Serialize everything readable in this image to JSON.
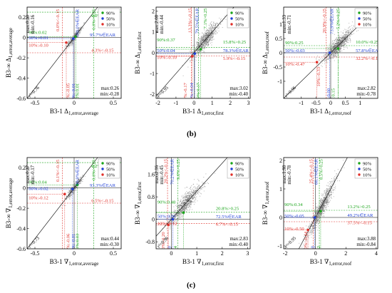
{
  "figure": {
    "captions": [
      "(b)",
      "(c)"
    ]
  },
  "colors": {
    "p90": "#1aa51a",
    "p50": "#1f3fd6",
    "p10": "#e0302a",
    "cloud": "#6b6b6b"
  },
  "legend": {
    "labels": [
      "90%",
      "50%",
      "10%"
    ]
  },
  "chart_data": [
    {
      "type": "scatter",
      "row": 0,
      "col": 0,
      "xlabel": "B3-1 Δ1,error,average",
      "ylabel": "B3-∞ Δ1,error,average",
      "xlim": [
        -0.6,
        0.6
      ],
      "ylim": [
        -0.6,
        0.3
      ],
      "xticks": [
        -0.5,
        0,
        0.5
      ],
      "yticks": [
        -0.6,
        -0.4,
        -0.2,
        0,
        0.2
      ],
      "xtick_labels": [
        "-0.5",
        "0",
        "0.5"
      ],
      "ytick_labels": [
        "-0.6",
        "-0.4",
        "-0.2",
        "0",
        "0.2"
      ],
      "stats_tl": [
        "max:0.20",
        "min:-0.16"
      ],
      "stats_br": [
        "max:0.26",
        "min:-0.28"
      ],
      "r_label": "r²=0.76",
      "percentiles": {
        "p90": [
          0.02,
          0.01
        ],
        "p50": [
          -0.01,
          -0.01
        ],
        "p10": [
          -0.1,
          -0.05
        ]
      },
      "cloud": {
        "center": [
          0,
          0
        ],
        "spread": [
          0.1,
          0.055
        ],
        "n": 360
      },
      "annotations": [
        {
          "text": "0.0%>0.25",
          "color": "p90",
          "kind": "v",
          "x": 0.27,
          "y": 0.28
        },
        {
          "text": "100.0%∈EAR",
          "color": "p50",
          "kind": "v",
          "x": 0.06,
          "y": 0.28
        },
        {
          "text": "0.0%<-0.15",
          "color": "p10",
          "kind": "v",
          "x": -0.19,
          "y": 0.28
        },
        {
          "text": "0.0%>0.25",
          "color": "p90",
          "kind": "h",
          "x": 0.22,
          "y": 0.2
        },
        {
          "text": "95.7%∈EAR",
          "color": "p50",
          "kind": "h",
          "x": 0.2,
          "y": 0.01
        },
        {
          "text": "4.3%<-0.15",
          "color": "p10",
          "kind": "h",
          "x": 0.22,
          "y": -0.14
        },
        {
          "text": "90%:0.02",
          "color": "p90",
          "kind": "h",
          "x": -0.58,
          "y": 0.035
        },
        {
          "text": "50%:-0.01",
          "color": "p50",
          "kind": "h",
          "x": -0.58,
          "y": -0.015
        },
        {
          "text": "10%:-0.10",
          "color": "p10",
          "kind": "h",
          "x": -0.58,
          "y": -0.09
        },
        {
          "text": "10%:-0.05",
          "color": "p10",
          "kind": "v",
          "x": -0.06,
          "y": -0.45
        },
        {
          "text": "50%:-0.01",
          "color": "p50",
          "kind": "v",
          "x": 0.01,
          "y": -0.45
        },
        {
          "text": "90%:0.01",
          "color": "p90",
          "kind": "v",
          "x": 0.06,
          "y": -0.45
        }
      ]
    },
    {
      "type": "scatter",
      "row": 0,
      "col": 1,
      "xlabel": "B3-1 Δ1,error,first",
      "ylabel": "B3-∞ Δ1,error,first",
      "xlim": [
        -2.1,
        3.1
      ],
      "ylim": [
        -2.2,
        2.2
      ],
      "xticks": [
        -2,
        -1,
        0,
        1,
        2,
        3
      ],
      "yticks": [
        -2,
        -1,
        0,
        1,
        2
      ],
      "xtick_labels": [
        "-2",
        "-1",
        "0",
        "1",
        "2",
        "3"
      ],
      "ytick_labels": [
        "-2",
        "-1",
        "0",
        "1",
        "2"
      ],
      "stats_tl": [
        "max:2.08",
        "min:-0.44"
      ],
      "stats_br": [
        "max:3.02",
        "min:-0.40"
      ],
      "r_label": "r²=0.95",
      "percentiles": {
        "p90": [
          0.37,
          0.17
        ],
        "p50": [
          0.04,
          -0.04
        ],
        "p10": [
          -0.1,
          -0.17
        ]
      },
      "cloud": {
        "center": [
          0.6,
          0.6
        ],
        "spread": [
          0.7,
          0.55
        ],
        "n": 900
      },
      "annotations": [
        {
          "text": "13.3%<-0.15",
          "color": "p10",
          "kind": "v",
          "x": -0.15,
          "y": 2.15
        },
        {
          "text": "79.5%∈EAR",
          "color": "p50",
          "kind": "v",
          "x": 0.25,
          "y": 2.15
        },
        {
          "text": "7.1%>0.25",
          "color": "p90",
          "kind": "v",
          "x": 0.7,
          "y": 2.15
        },
        {
          "text": "15.8%>0.25",
          "color": "p90",
          "kind": "h",
          "x": 1.6,
          "y": 0.45
        },
        {
          "text": "78.3%∈EAR",
          "color": "p50",
          "kind": "h",
          "x": 1.6,
          "y": 0.03
        },
        {
          "text": "5.9%<-0.15",
          "color": "p10",
          "kind": "h",
          "x": 1.6,
          "y": -0.35
        },
        {
          "text": "90%:0.37",
          "color": "p90",
          "kind": "h",
          "x": -2.05,
          "y": 0.55
        },
        {
          "text": "50%:0.04",
          "color": "p50",
          "kind": "h",
          "x": -2.05,
          "y": 0.03
        },
        {
          "text": "10%:-0.10",
          "color": "p10",
          "kind": "h",
          "x": -2.05,
          "y": -0.3
        },
        {
          "text": "10%:-0.17",
          "color": "p10",
          "kind": "v",
          "x": -0.4,
          "y": -1.45
        },
        {
          "text": "50%:-0.04",
          "color": "p50",
          "kind": "v",
          "x": -0.05,
          "y": -1.45
        },
        {
          "text": "90%:0.17",
          "color": "p90",
          "kind": "v",
          "x": 0.3,
          "y": -1.45
        }
      ]
    },
    {
      "type": "scatter",
      "row": 0,
      "col": 2,
      "xlabel": "B3-1 Δ1,error,roof",
      "ylabel": "B3-∞ Δ1,error,roof",
      "xlim": [
        -1.6,
        1.6
      ],
      "ylim": [
        -1.6,
        1.6
      ],
      "xticks": [
        -1,
        -0.5,
        0,
        0.5,
        1
      ],
      "yticks": [
        -1,
        -0.5,
        0,
        0.5,
        1
      ],
      "xtick_labels": [
        "-1",
        "-0.5",
        "0",
        "0.5",
        "1"
      ],
      "ytick_labels": [
        "-1",
        "-0.5",
        "0",
        "0.5",
        "1"
      ],
      "stats_tl": [
        "max:1.33",
        "min:-0.71"
      ],
      "stats_br": [
        "max:2.82",
        "min:-0.78"
      ],
      "r_label": "r²=0.96",
      "percentiles": {
        "p90": [
          0.25,
          0.15
        ],
        "p50": [
          -0.03,
          0.0
        ],
        "p10": [
          -0.47,
          -0.33
        ]
      },
      "cloud": {
        "center": [
          0.25,
          0.25
        ],
        "spread": [
          0.45,
          0.4
        ],
        "n": 1000
      },
      "annotations": [
        {
          "text": "20.9%<-0.15",
          "color": "p10",
          "kind": "v",
          "x": -0.17,
          "y": 1.55
        },
        {
          "text": "73.9%∈EAR",
          "color": "p50",
          "kind": "v",
          "x": 0.08,
          "y": 1.55
        },
        {
          "text": "5.2%>0.25",
          "color": "p90",
          "kind": "v",
          "x": 0.3,
          "y": 1.55
        },
        {
          "text": "10.0%>0.25",
          "color": "p90",
          "kind": "h",
          "x": 0.85,
          "y": 0.32
        },
        {
          "text": "57.8%∈EAR",
          "color": "p50",
          "kind": "h",
          "x": 0.85,
          "y": 0.03
        },
        {
          "text": "32.2%<-0.15",
          "color": "p10",
          "kind": "h",
          "x": 0.85,
          "y": -0.25
        },
        {
          "text": "90%:0.25",
          "color": "p90",
          "kind": "h",
          "x": -1.55,
          "y": 0.3
        },
        {
          "text": "50%:-0.03",
          "color": "p50",
          "kind": "h",
          "x": -1.55,
          "y": 0.02
        },
        {
          "text": "10%:-0.47",
          "color": "p10",
          "kind": "h",
          "x": -1.55,
          "y": -0.45
        },
        {
          "text": "10%:-0.33",
          "color": "p10",
          "kind": "v",
          "x": -0.36,
          "y": -0.5
        },
        {
          "text": "50%:0.00",
          "color": "p50",
          "kind": "v",
          "x": -0.02,
          "y": -1.25
        },
        {
          "text": "90%:0.15",
          "color": "p90",
          "kind": "v",
          "x": 0.13,
          "y": -1.25
        }
      ]
    },
    {
      "type": "scatter",
      "row": 1,
      "col": 0,
      "xlabel": "B3-1 ∇1,error,average",
      "ylabel": "B3-∞ ∇1,error,average",
      "xlim": [
        -0.6,
        0.6
      ],
      "ylim": [
        -0.6,
        0.3
      ],
      "xticks": [
        -0.5,
        0,
        0.5
      ],
      "yticks": [
        -0.6,
        -0.4,
        -0.2,
        0,
        0.2
      ],
      "xtick_labels": [
        "-0.5",
        "0",
        "0.5"
      ],
      "ytick_labels": [
        "-0.6",
        "-0.4",
        "-0.2",
        "0",
        "0.2"
      ],
      "stats_tl": [
        "max:0.27",
        "min:-0.17"
      ],
      "stats_br": [
        "max:0.44",
        "min:-0.30"
      ],
      "r_label": "r²=0.73",
      "percentiles": {
        "p90": [
          0.04,
          0.03
        ],
        "p50": [
          -0.02,
          -0.01
        ],
        "p10": [
          -0.12,
          -0.06
        ]
      },
      "cloud": {
        "center": [
          0,
          0
        ],
        "spread": [
          0.11,
          0.06
        ],
        "n": 380
      },
      "annotations": [
        {
          "text": "0.0%>0.25",
          "color": "p90",
          "kind": "v",
          "x": 0.27,
          "y": 0.28
        },
        {
          "text": "99.9%∈EAR",
          "color": "p50",
          "kind": "v",
          "x": 0.06,
          "y": 0.28
        },
        {
          "text": "0.1%<-0.15",
          "color": "p10",
          "kind": "v",
          "x": -0.19,
          "y": 0.28
        },
        {
          "text": "0.2%>0.25",
          "color": "p90",
          "kind": "h",
          "x": 0.22,
          "y": 0.2
        },
        {
          "text": "93.3%∈EAR",
          "color": "p50",
          "kind": "h",
          "x": 0.2,
          "y": 0.01
        },
        {
          "text": "6.5%<-0.15",
          "color": "p10",
          "kind": "h",
          "x": 0.22,
          "y": -0.14
        },
        {
          "text": "90%:0.04",
          "color": "p90",
          "kind": "h",
          "x": -0.58,
          "y": 0.045
        },
        {
          "text": "50%:-0.02",
          "color": "p50",
          "kind": "h",
          "x": -0.58,
          "y": -0.02
        },
        {
          "text": "10%:-0.12",
          "color": "p10",
          "kind": "h",
          "x": -0.58,
          "y": -0.11
        },
        {
          "text": "10%:-0.06",
          "color": "p10",
          "kind": "v",
          "x": -0.06,
          "y": -0.45
        },
        {
          "text": "50%:-0.01",
          "color": "p50",
          "kind": "v",
          "x": 0.01,
          "y": -0.45
        },
        {
          "text": "90%:0.03",
          "color": "p90",
          "kind": "v",
          "x": 0.06,
          "y": -0.45
        }
      ]
    },
    {
      "type": "scatter",
      "row": 1,
      "col": 1,
      "xlabel": "B3-1 ∇1,error,first",
      "ylabel": "B3-∞ ∇1,error,first",
      "xlim": [
        -0.6,
        3.1
      ],
      "ylim": [
        -1.05,
        2.2
      ],
      "xticks": [
        0,
        1,
        2,
        3
      ],
      "yticks": [
        -0.8,
        0,
        0.8,
        1.6
      ],
      "xtick_labels": [
        "0",
        "1",
        "2",
        "3"
      ],
      "ytick_labels": [
        "-0.8",
        "0",
        "0.8",
        "1.6"
      ],
      "stats_tl": [
        "max:2.16",
        "min:-0.45"
      ],
      "stats_br": [
        "max:2.83",
        "min:-0.40"
      ],
      "r_label": "r²=0.96",
      "percentiles": {
        "p90": [
          0.48,
          0.24
        ],
        "p50": [
          0.06,
          0.0
        ],
        "p10": [
          -0.12,
          -0.2
        ]
      },
      "cloud": {
        "center": [
          0.55,
          0.55
        ],
        "spread": [
          0.6,
          0.45
        ],
        "n": 900
      },
      "annotations": [
        {
          "text": "20.2%<-0.15",
          "color": "p10",
          "kind": "v",
          "x": -0.17,
          "y": 2.15
        },
        {
          "text": "70.2%∈EAR",
          "color": "p50",
          "kind": "v",
          "x": 0.08,
          "y": 2.15
        },
        {
          "text": "9.6%>0.25",
          "color": "p90",
          "kind": "v",
          "x": 0.33,
          "y": 2.15
        },
        {
          "text": "20.8%>0.25",
          "color": "p90",
          "kind": "h",
          "x": 1.75,
          "y": 0.33
        },
        {
          "text": "72.5%∈EAR",
          "color": "p50",
          "kind": "h",
          "x": 1.75,
          "y": 0.04
        },
        {
          "text": "6.7%<-0.15",
          "color": "p10",
          "kind": "h",
          "x": 1.75,
          "y": -0.22
        },
        {
          "text": "90%:0.48",
          "color": "p90",
          "kind": "h",
          "x": -0.55,
          "y": 0.56
        },
        {
          "text": "50%:0.06",
          "color": "p50",
          "kind": "h",
          "x": -0.55,
          "y": 0.06
        },
        {
          "text": "10%:-0.12",
          "color": "p10",
          "kind": "h",
          "x": -0.55,
          "y": -0.2
        },
        {
          "text": "10%:-0.20",
          "color": "p10",
          "kind": "v",
          "x": -0.27,
          "y": -0.45
        },
        {
          "text": "50%:0.00",
          "color": "p50",
          "kind": "v",
          "x": -0.02,
          "y": -0.95
        },
        {
          "text": "90%:0.24",
          "color": "p90",
          "kind": "v",
          "x": 0.22,
          "y": -0.95
        }
      ]
    },
    {
      "type": "scatter",
      "row": 1,
      "col": 2,
      "xlabel": "B3-1 ∇1,error,roof",
      "ylabel": "B3-∞ ∇1,error,roof",
      "xlim": [
        -2.1,
        4.1
      ],
      "ylim": [
        -1.1,
        2.1
      ],
      "xticks": [
        -2,
        0,
        2,
        4
      ],
      "yticks": [
        -1,
        0,
        1,
        2
      ],
      "xtick_labels": [
        "-2",
        "0",
        "2",
        "4"
      ],
      "ytick_labels": [
        "-1",
        "0",
        "1",
        "2"
      ],
      "stats_tl": [
        "max:1.98",
        "min:-0.78"
      ],
      "stats_br": [
        "max:3.88",
        "min:-0.84"
      ],
      "r_label": "r²=0.95",
      "percentiles": {
        "p90": [
          0.34,
          0.22
        ],
        "p50": [
          -0.05,
          0.0
        ],
        "p10": [
          -0.5,
          -0.44
        ]
      },
      "cloud": {
        "center": [
          0.4,
          0.35
        ],
        "spread": [
          0.9,
          0.45
        ],
        "n": 1000
      },
      "annotations": [
        {
          "text": "25.4%<-0.15",
          "color": "p10",
          "kind": "v",
          "x": -0.2,
          "y": 2.05
        },
        {
          "text": "66.1%∈EAR",
          "color": "p50",
          "kind": "v",
          "x": 0.12,
          "y": 2.05
        },
        {
          "text": "8.5%>0.25",
          "color": "p90",
          "kind": "v",
          "x": 0.45,
          "y": 2.05
        },
        {
          "text": "13.2%>0.25",
          "color": "p90",
          "kind": "h",
          "x": 2.1,
          "y": 0.32
        },
        {
          "text": "49.2%∈EAR",
          "color": "p50",
          "kind": "h",
          "x": 2.1,
          "y": 0.03
        },
        {
          "text": "37.5%<-0.15",
          "color": "p10",
          "kind": "h",
          "x": 2.1,
          "y": -0.24
        },
        {
          "text": "90%:0.34",
          "color": "p90",
          "kind": "h",
          "x": -2.05,
          "y": 0.4
        },
        {
          "text": "50%:-0.05",
          "color": "p50",
          "kind": "h",
          "x": -2.05,
          "y": 0.0
        },
        {
          "text": "10%:-0.50",
          "color": "p10",
          "kind": "h",
          "x": -2.05,
          "y": -0.45
        },
        {
          "text": "10%:-0.44",
          "color": "p10",
          "kind": "v",
          "x": -0.55,
          "y": -0.5
        },
        {
          "text": "50%:0.00",
          "color": "p50",
          "kind": "v",
          "x": -0.1,
          "y": -1.0
        },
        {
          "text": "90%:0.22",
          "color": "p90",
          "kind": "v",
          "x": 0.3,
          "y": -1.0
        }
      ]
    }
  ]
}
